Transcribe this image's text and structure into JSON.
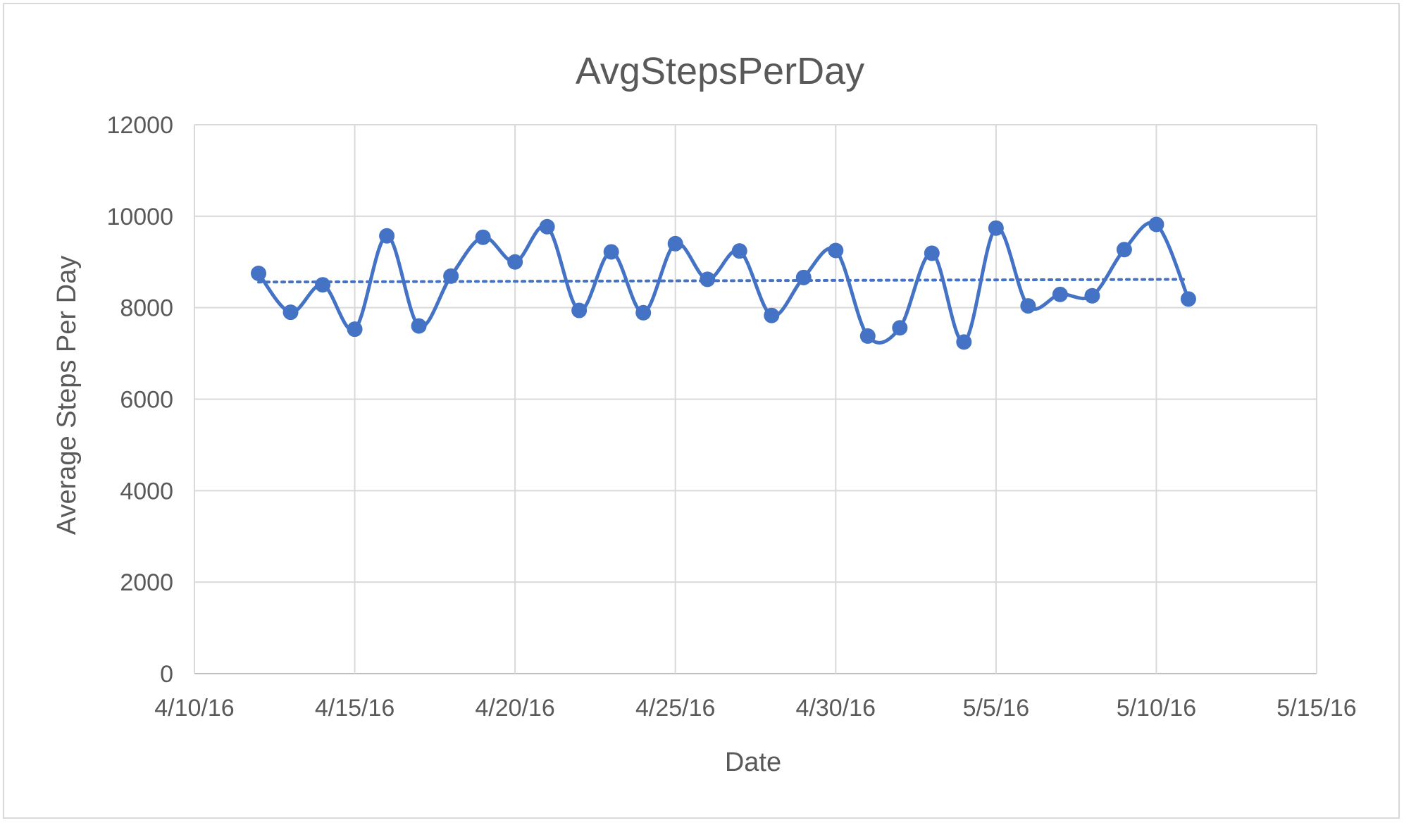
{
  "chart_data": {
    "type": "line",
    "title": "AvgStepsPerDay",
    "xlabel": "Date",
    "ylabel": "Average Steps Per Day",
    "xlim": [
      "4/10/16",
      "5/15/16"
    ],
    "ylim": [
      0,
      12000
    ],
    "x_ticks": [
      "4/10/16",
      "4/15/16",
      "4/20/16",
      "4/25/16",
      "4/30/16",
      "5/5/16",
      "5/10/16",
      "5/15/16"
    ],
    "y_ticks": [
      "0",
      "2000",
      "4000",
      "6000",
      "8000",
      "10000",
      "12000"
    ],
    "grid": true,
    "legend": "none",
    "line_smoothing": "smooth",
    "series": [
      {
        "x": [
          "4/12/16",
          "4/13/16",
          "4/14/16",
          "4/15/16",
          "4/16/16",
          "4/17/16",
          "4/18/16",
          "4/19/16",
          "4/20/16",
          "4/21/16",
          "4/22/16",
          "4/23/16",
          "4/24/16",
          "4/25/16",
          "4/26/16",
          "4/27/16",
          "4/28/16",
          "4/29/16",
          "4/30/16",
          "5/1/16",
          "5/2/16",
          "5/3/16",
          "5/4/16",
          "5/5/16",
          "5/6/16",
          "5/7/16",
          "5/8/16",
          "5/9/16",
          "5/10/16",
          "5/11/16"
        ],
        "values": [
          8750,
          7900,
          8500,
          7530,
          9570,
          7600,
          8690,
          9540,
          9000,
          9770,
          7940,
          9220,
          7890,
          9400,
          8620,
          9240,
          7830,
          8660,
          9250,
          7380,
          7560,
          9190,
          7250,
          9740,
          8040,
          8290,
          8260,
          9270,
          9820,
          8190
        ],
        "color": "#4472c4"
      }
    ],
    "trendline": {
      "type": "linear",
      "x": [
        "4/12/16",
        "5/11/16"
      ],
      "values": [
        8560,
        8620
      ],
      "style": "dotted",
      "color": "#4472c4"
    }
  }
}
